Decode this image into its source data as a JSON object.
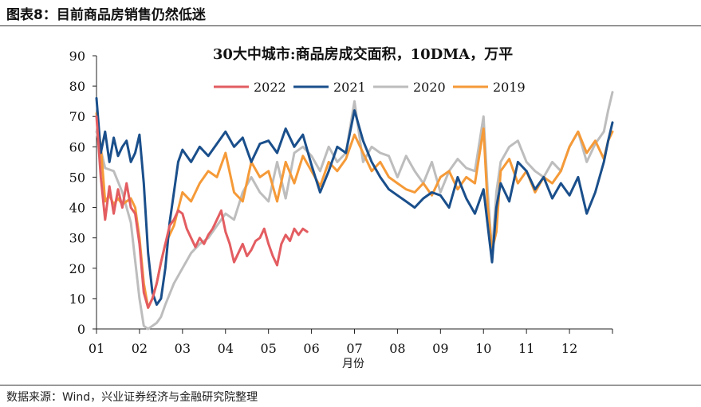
{
  "figure": {
    "title": "图表8：目前商品房销售仍然低迷",
    "source": "数据来源：Wind，兴业证券经济与金融研究院整理"
  },
  "chart_data": {
    "type": "line",
    "title": "30大中城市:商品房成交面积，10DMA，万平",
    "xlabel": "月份",
    "ylabel": "",
    "ylim": [
      0,
      90
    ],
    "xlim": [
      1,
      13
    ],
    "yticks": [
      0,
      10,
      20,
      30,
      40,
      50,
      60,
      70,
      80,
      90
    ],
    "xtick_labels": [
      "01",
      "02",
      "03",
      "04",
      "05",
      "06",
      "07",
      "08",
      "09",
      "10",
      "11",
      "12"
    ],
    "legend_position": "top",
    "grid": false,
    "series": [
      {
        "name": "2022",
        "color": "#e35d61",
        "x": [
          1.0,
          1.1,
          1.2,
          1.3,
          1.4,
          1.5,
          1.6,
          1.7,
          1.8,
          1.9,
          2.0,
          2.1,
          2.2,
          2.3,
          2.4,
          2.5,
          2.6,
          2.7,
          2.8,
          2.9,
          3.0,
          3.1,
          3.2,
          3.3,
          3.4,
          3.5,
          3.6,
          3.7,
          3.8,
          3.9,
          4.0,
          4.1,
          4.2,
          4.3,
          4.4,
          4.5,
          4.6,
          4.7,
          4.8,
          4.9,
          5.0,
          5.1,
          5.2,
          5.3,
          5.4,
          5.5,
          5.6,
          5.7,
          5.8,
          5.9
        ],
        "values": [
          70,
          50,
          36,
          47,
          38,
          46,
          40,
          48,
          40,
          38,
          28,
          12,
          7,
          10,
          15,
          22,
          28,
          34,
          36,
          39,
          38,
          33,
          30,
          27,
          30,
          28,
          31,
          33,
          36,
          39,
          32,
          28,
          22,
          25,
          28,
          24,
          26,
          29,
          30,
          33,
          28,
          24,
          21,
          28,
          31,
          29,
          33,
          31,
          33,
          32
        ]
      },
      {
        "name": "2021",
        "color": "#1a4f8b",
        "x": [
          1.0,
          1.1,
          1.2,
          1.3,
          1.4,
          1.5,
          1.6,
          1.7,
          1.8,
          1.9,
          2.0,
          2.1,
          2.2,
          2.3,
          2.4,
          2.5,
          2.6,
          2.7,
          2.8,
          2.9,
          3.0,
          3.2,
          3.4,
          3.6,
          3.8,
          4.0,
          4.2,
          4.4,
          4.6,
          4.8,
          5.0,
          5.2,
          5.4,
          5.6,
          5.8,
          6.0,
          6.2,
          6.4,
          6.6,
          6.8,
          7.0,
          7.2,
          7.4,
          7.6,
          7.8,
          8.0,
          8.2,
          8.4,
          8.6,
          8.8,
          9.0,
          9.2,
          9.4,
          9.6,
          9.8,
          10.0,
          10.1,
          10.2,
          10.3,
          10.4,
          10.6,
          10.8,
          11.0,
          11.2,
          11.4,
          11.6,
          11.8,
          12.0,
          12.2,
          12.4,
          12.6,
          12.8,
          12.9,
          13.0
        ],
        "values": [
          76,
          58,
          65,
          55,
          63,
          57,
          60,
          62,
          55,
          58,
          64,
          48,
          25,
          12,
          8,
          10,
          20,
          35,
          45,
          55,
          59,
          55,
          60,
          57,
          61,
          65,
          60,
          63,
          55,
          61,
          62,
          58,
          66,
          60,
          64,
          54,
          45,
          52,
          60,
          58,
          72,
          62,
          55,
          50,
          46,
          44,
          42,
          40,
          43,
          45,
          44,
          40,
          50,
          43,
          38,
          46,
          34,
          22,
          40,
          48,
          42,
          55,
          52,
          46,
          50,
          43,
          48,
          44,
          50,
          38,
          45,
          55,
          62,
          68
        ]
      },
      {
        "name": "2020",
        "color": "#bdbdbd",
        "x": [
          1.0,
          1.2,
          1.4,
          1.6,
          1.8,
          2.0,
          2.1,
          2.2,
          2.3,
          2.4,
          2.5,
          2.6,
          2.8,
          3.0,
          3.2,
          3.4,
          3.6,
          3.8,
          4.0,
          4.2,
          4.4,
          4.6,
          4.8,
          5.0,
          5.2,
          5.4,
          5.6,
          5.8,
          6.0,
          6.2,
          6.4,
          6.6,
          6.8,
          7.0,
          7.2,
          7.4,
          7.6,
          7.8,
          8.0,
          8.2,
          8.4,
          8.6,
          8.8,
          9.0,
          9.2,
          9.4,
          9.6,
          9.8,
          10.0,
          10.1,
          10.2,
          10.3,
          10.4,
          10.6,
          10.8,
          11.0,
          11.2,
          11.4,
          11.6,
          11.8,
          12.0,
          12.2,
          12.4,
          12.6,
          12.8,
          12.9,
          13.0
        ],
        "values": [
          65,
          53,
          52,
          45,
          35,
          10,
          1,
          0,
          1,
          2,
          4,
          8,
          15,
          20,
          25,
          28,
          30,
          34,
          38,
          36,
          45,
          50,
          45,
          42,
          55,
          43,
          58,
          60,
          57,
          52,
          60,
          55,
          58,
          75,
          55,
          60,
          58,
          57,
          50,
          57,
          52,
          48,
          55,
          45,
          52,
          56,
          53,
          52,
          70,
          45,
          25,
          45,
          55,
          60,
          62,
          55,
          52,
          50,
          55,
          52,
          60,
          65,
          55,
          61,
          65,
          72,
          78
        ]
      },
      {
        "name": "2019",
        "color": "#f59a38",
        "x": [
          1.0,
          1.1,
          1.2,
          1.3,
          1.4,
          1.5,
          1.6,
          1.7,
          1.8,
          1.9,
          2.0,
          2.1,
          2.2,
          2.3,
          2.4,
          2.5,
          2.6,
          2.8,
          3.0,
          3.2,
          3.4,
          3.6,
          3.8,
          4.0,
          4.2,
          4.4,
          4.6,
          4.8,
          5.0,
          5.2,
          5.4,
          5.6,
          5.8,
          6.0,
          6.2,
          6.4,
          6.6,
          6.8,
          7.0,
          7.2,
          7.4,
          7.6,
          7.8,
          8.0,
          8.2,
          8.4,
          8.6,
          8.8,
          9.0,
          9.2,
          9.4,
          9.6,
          9.8,
          10.0,
          10.1,
          10.2,
          10.3,
          10.4,
          10.6,
          10.8,
          11.0,
          11.2,
          11.4,
          11.6,
          11.8,
          12.0,
          12.2,
          12.4,
          12.6,
          12.8,
          12.9,
          13.0
        ],
        "values": [
          71,
          60,
          42,
          44,
          41,
          43,
          41,
          42,
          43,
          40,
          30,
          15,
          7,
          10,
          15,
          22,
          28,
          34,
          45,
          42,
          48,
          52,
          50,
          58,
          45,
          42,
          55,
          50,
          52,
          42,
          55,
          48,
          57,
          52,
          47,
          55,
          52,
          56,
          64,
          58,
          52,
          55,
          50,
          48,
          46,
          45,
          48,
          44,
          50,
          52,
          46,
          50,
          48,
          66,
          40,
          26,
          32,
          52,
          56,
          48,
          52,
          45,
          50,
          48,
          52,
          60,
          65,
          58,
          62,
          56,
          62,
          65
        ]
      }
    ]
  }
}
